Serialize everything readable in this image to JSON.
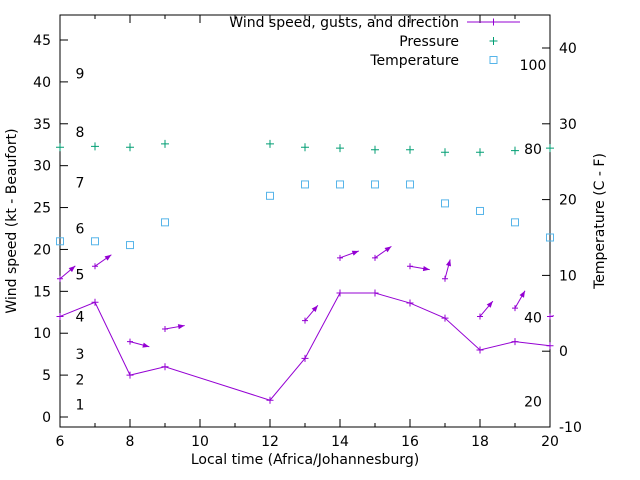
{
  "chart_data": {
    "type": "line",
    "title": "",
    "xlabel": "Local time (Africa/Johannesburg)",
    "ylabel_left": "Wind speed (kt - Beaufort)",
    "ylabel_right": "Temperature (C - F)",
    "xlim": [
      6,
      20
    ],
    "ylim_left": [
      -1.2,
      48
    ],
    "ylim_right_celsius": [
      -10,
      44.4
    ],
    "grid": false,
    "legend_position": "top-right-inside",
    "x_ticks": [
      6,
      8,
      10,
      12,
      14,
      16,
      18,
      20
    ],
    "x_minor_ticks": [
      7,
      9,
      11,
      13,
      15,
      17,
      19
    ],
    "y_left_ticks": [
      0,
      5,
      10,
      15,
      20,
      25,
      30,
      35,
      40,
      45
    ],
    "y_right_ticks": [
      -10,
      0,
      10,
      20,
      30,
      40
    ],
    "x": [
      6,
      7,
      8,
      9,
      12,
      13,
      14,
      15,
      16,
      17,
      18,
      19,
      20
    ],
    "series": [
      {
        "name": "Wind speed (kt)",
        "axis": "left",
        "color": "#9400d3",
        "style": "line+points",
        "values": [
          12,
          13.7,
          5,
          6,
          2,
          7,
          14.8,
          14.8,
          13.6,
          11.8,
          8,
          9,
          8.5
        ]
      },
      {
        "name": "Wind gusts (kt) with direction arrows",
        "axis": "left",
        "color": "#9400d3",
        "style": "vectors",
        "values": [
          16.5,
          18,
          9,
          10.5,
          null,
          11.5,
          19,
          19,
          18,
          16.5,
          12,
          13,
          12
        ],
        "direction_deg": [
          40,
          35,
          -15,
          10,
          null,
          50,
          20,
          35,
          -10,
          75,
          50,
          60,
          10
        ]
      },
      {
        "name": "Pressure (plotted position, left-axis units)",
        "axis": "left",
        "color": "#009e73",
        "style": "points-plus",
        "values": [
          32.2,
          32.3,
          32.2,
          32.6,
          32.6,
          32.2,
          32.1,
          31.9,
          31.9,
          31.6,
          31.6,
          31.8,
          32.1
        ]
      },
      {
        "name": "Temperature (C)",
        "axis": "right",
        "color": "#56b4e9",
        "style": "points-square",
        "values": [
          14.5,
          14.5,
          14,
          17,
          20.5,
          22,
          22,
          22,
          22,
          19.5,
          18.5,
          17,
          15
        ]
      }
    ],
    "legend": [
      {
        "label": "Wind speed, gusts, and direction",
        "sample": "line-plus",
        "color": "#9400d3"
      },
      {
        "label": "Pressure",
        "sample": "plus",
        "color": "#009e73"
      },
      {
        "label": "Temperature",
        "sample": "square",
        "color": "#56b4e9"
      }
    ],
    "beaufort_scale_labels": [
      {
        "label": "1",
        "kt": 1.5
      },
      {
        "label": "2",
        "kt": 4.5
      },
      {
        "label": "3",
        "kt": 7.5
      },
      {
        "label": "4",
        "kt": 12
      },
      {
        "label": "5",
        "kt": 17
      },
      {
        "label": "6",
        "kt": 22.5
      },
      {
        "label": "7",
        "kt": 28
      },
      {
        "label": "8",
        "kt": 34
      },
      {
        "label": "9",
        "kt": 41
      }
    ],
    "fahrenheit_scale_labels": [
      {
        "label": "20",
        "f": 20
      },
      {
        "label": "40",
        "f": 40
      },
      {
        "label": "80",
        "f": 80
      },
      {
        "label": "100",
        "f": 100
      }
    ]
  }
}
